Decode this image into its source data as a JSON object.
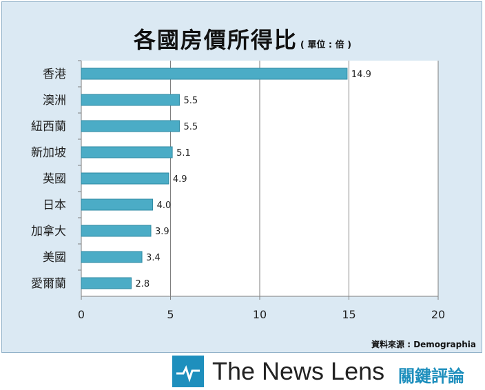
{
  "chart_data": {
    "type": "bar",
    "orientation": "horizontal",
    "title": "各國房價所得比",
    "unit_note": "( 單位 : 倍 )",
    "categories": [
      "香港",
      "澳洲",
      "紐西蘭",
      "新加坡",
      "英國",
      "日本",
      "加拿大",
      "美國",
      "愛爾蘭"
    ],
    "values": [
      14.9,
      5.5,
      5.5,
      5.1,
      4.9,
      4.0,
      3.9,
      3.4,
      2.8
    ],
    "value_labels": [
      "14.9",
      "5.5",
      "5.5",
      "5.1",
      "4.9",
      "4.0",
      "3.9",
      "3.4",
      "2.8"
    ],
    "xlim": [
      0,
      20
    ],
    "xticks": [
      "0",
      "5",
      "10",
      "15",
      "20"
    ],
    "grid": "vertical",
    "bar_color": "#4bacc6"
  },
  "source": "資料來源 : Demographia",
  "brand": {
    "name": "The News Lens",
    "cjk": "關鍵評論"
  }
}
